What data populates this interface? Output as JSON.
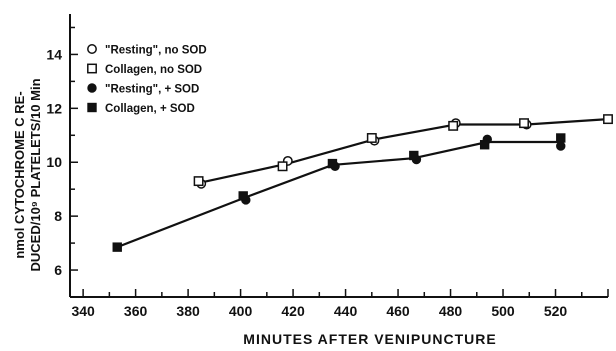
{
  "chart_data": {
    "type": "line",
    "title": "",
    "xlabel": "MINUTES AFTER VENIPUNCTURE",
    "ylabel_line1": "nmol CYTOCHROME C RE-",
    "ylabel_line2": "DUCED/10⁹ PLATELETS/10 Min",
    "xlim": [
      335,
      540
    ],
    "ylim": [
      5,
      15.5
    ],
    "xticks": [
      340,
      360,
      380,
      400,
      420,
      440,
      460,
      480,
      500,
      520
    ],
    "yticks": [
      6,
      8,
      10,
      12,
      14
    ],
    "legend_position": "top-left",
    "series": [
      {
        "name": "\"Resting\", no SOD",
        "marker": "open-circle",
        "points": [
          [
            385,
            9.2
          ],
          [
            418,
            10.05
          ],
          [
            451,
            10.8
          ],
          [
            482,
            11.45
          ],
          [
            509,
            11.4
          ]
        ]
      },
      {
        "name": "Collagen, no SOD",
        "marker": "open-square",
        "points": [
          [
            384,
            9.3
          ],
          [
            416,
            9.85
          ],
          [
            450,
            10.9
          ],
          [
            481,
            11.35
          ],
          [
            508,
            11.45
          ],
          [
            540,
            11.6
          ]
        ]
      },
      {
        "name": "\"Resting\", + SOD",
        "marker": "filled-circle",
        "points": [
          [
            402,
            8.6
          ],
          [
            436,
            9.85
          ],
          [
            467,
            10.1
          ],
          [
            494,
            10.85
          ],
          [
            522,
            10.6
          ]
        ]
      },
      {
        "name": "Collagen, + SOD",
        "marker": "filled-square",
        "points": [
          [
            353,
            6.85
          ],
          [
            401,
            8.75
          ],
          [
            435,
            9.95
          ],
          [
            466,
            10.25
          ],
          [
            493,
            10.65
          ],
          [
            522,
            10.9
          ]
        ]
      }
    ],
    "trend_lines": [
      {
        "style": "upper",
        "points": [
          [
            385,
            9.25
          ],
          [
            418,
            9.95
          ],
          [
            451,
            10.85
          ],
          [
            482,
            11.4
          ],
          [
            509,
            11.4
          ],
          [
            540,
            11.6
          ]
        ]
      },
      {
        "style": "lower",
        "points": [
          [
            353,
            6.85
          ],
          [
            402,
            8.7
          ],
          [
            435,
            9.9
          ],
          [
            466,
            10.15
          ],
          [
            494,
            10.75
          ],
          [
            522,
            10.75
          ]
        ]
      }
    ],
    "colors": {
      "ink": "#111111",
      "background": "#ffffff"
    }
  }
}
